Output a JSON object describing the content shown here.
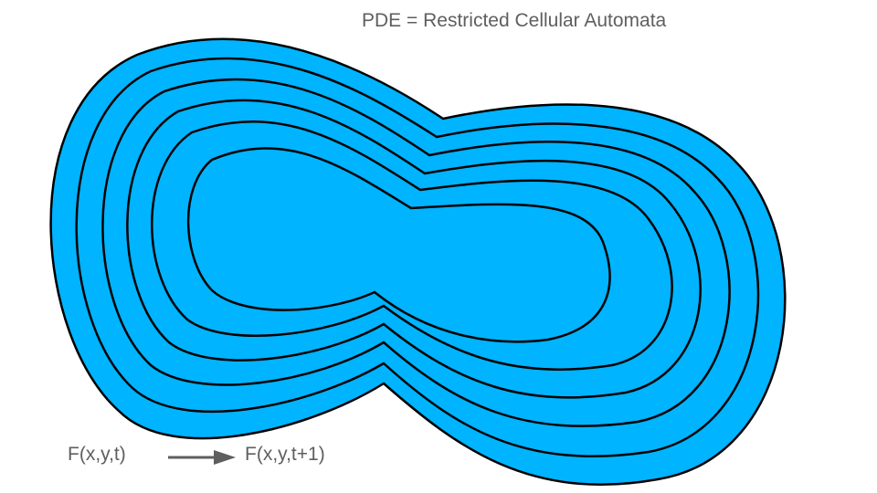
{
  "title": "PDE = Restricted Cellular Automata",
  "formula": {
    "from": "F(x,y,t)",
    "to": "F(x,y,t+1)"
  },
  "colors": {
    "region_fill": "#00b4ff",
    "contour_stroke": "#000000",
    "text": "#5f5f5f",
    "arrow": "#5f5f5f"
  },
  "contour_count": 5
}
